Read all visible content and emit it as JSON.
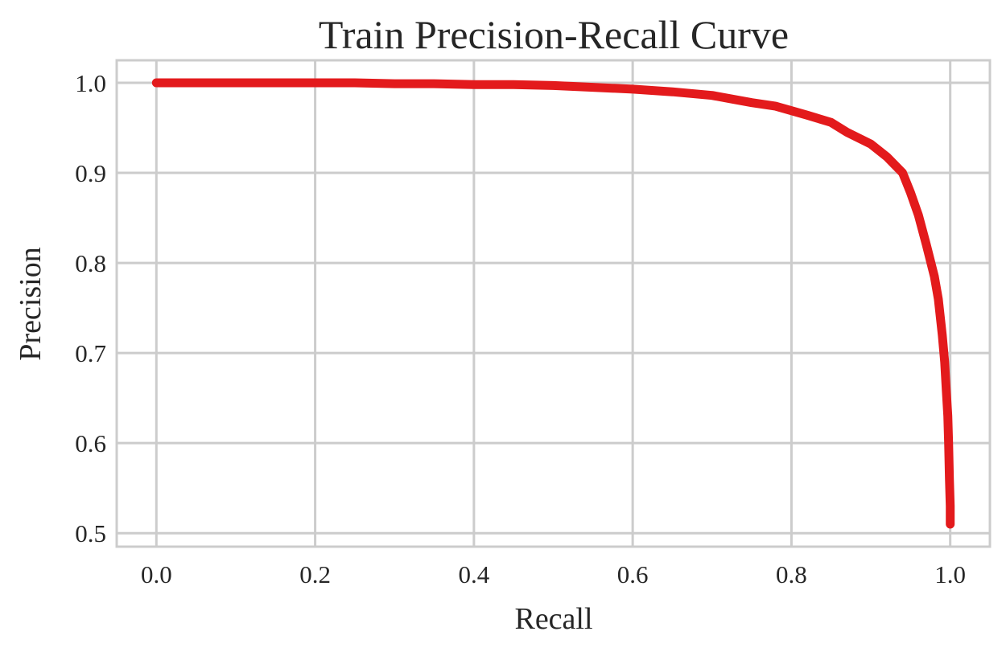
{
  "chart_data": {
    "type": "line",
    "title": "Train Precision-Recall Curve",
    "xlabel": "Recall",
    "ylabel": "Precision",
    "xlim": [
      -0.05,
      1.05
    ],
    "ylim": [
      0.485,
      1.025
    ],
    "xticks": [
      0.0,
      0.2,
      0.4,
      0.6,
      0.8,
      1.0
    ],
    "xtick_labels": [
      "0.0",
      "0.2",
      "0.4",
      "0.6",
      "0.8",
      "1.0"
    ],
    "yticks": [
      0.5,
      0.6,
      0.7,
      0.8,
      0.9,
      1.0
    ],
    "ytick_labels": [
      "0.5",
      "0.6",
      "0.7",
      "0.8",
      "0.9",
      "1.0"
    ],
    "grid": true,
    "legend": "none",
    "series": [
      {
        "color": "#e31a1c",
        "x": [
          0.0,
          0.05,
          0.1,
          0.15,
          0.2,
          0.25,
          0.3,
          0.35,
          0.4,
          0.45,
          0.5,
          0.55,
          0.6,
          0.65,
          0.7,
          0.75,
          0.78,
          0.8,
          0.82,
          0.85,
          0.87,
          0.9,
          0.92,
          0.94,
          0.95,
          0.96,
          0.97,
          0.98,
          0.985,
          0.99,
          0.993,
          0.995,
          0.997,
          0.998,
          0.999,
          1.0,
          1.0
        ],
        "y": [
          1.0,
          1.0,
          1.0,
          1.0,
          1.0,
          1.0,
          0.999,
          0.999,
          0.998,
          0.998,
          0.997,
          0.995,
          0.993,
          0.99,
          0.986,
          0.978,
          0.974,
          0.969,
          0.964,
          0.956,
          0.945,
          0.932,
          0.918,
          0.9,
          0.878,
          0.853,
          0.82,
          0.785,
          0.76,
          0.72,
          0.69,
          0.66,
          0.63,
          0.6,
          0.56,
          0.53,
          0.51
        ]
      }
    ]
  }
}
